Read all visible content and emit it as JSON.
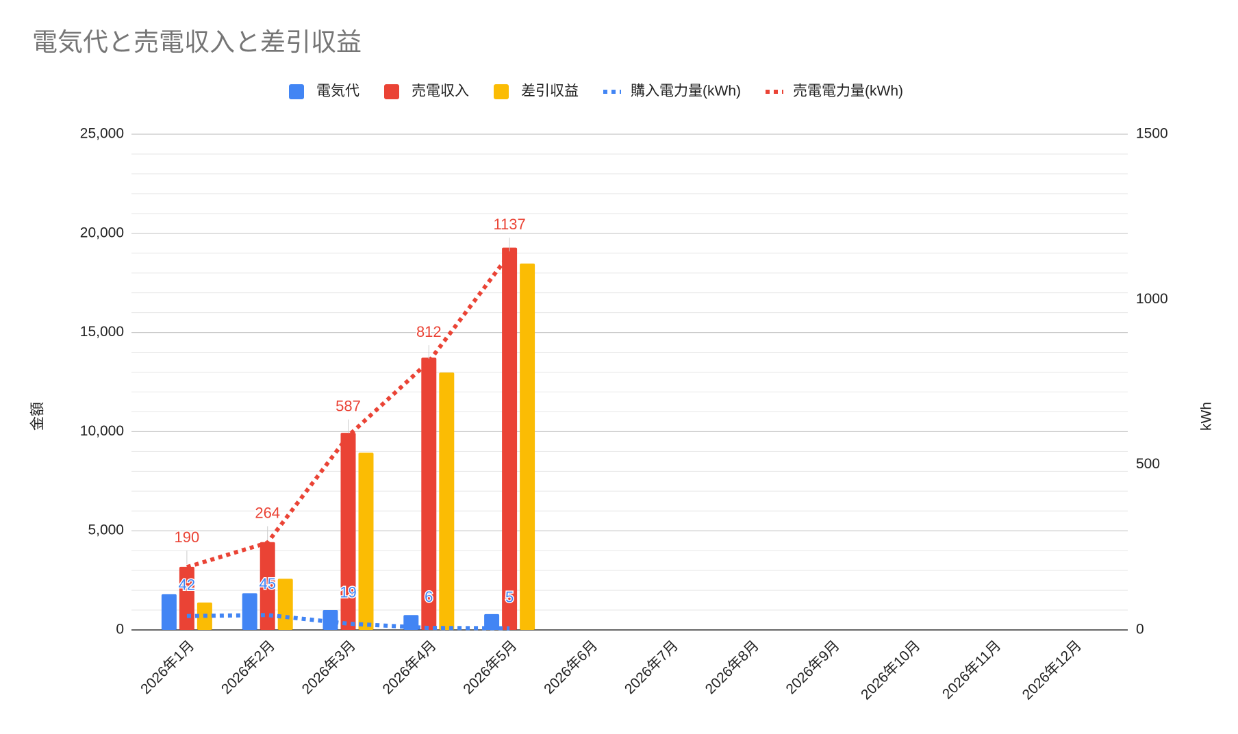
{
  "chart_data": {
    "type": "bar_line",
    "title": "電気代と売電収入と差引収益",
    "categories": [
      "2026年1月",
      "2026年2月",
      "2026年3月",
      "2026年4月",
      "2026年5月",
      "2026年6月",
      "2026年7月",
      "2026年8月",
      "2026年9月",
      "2026年10月",
      "2026年11月",
      "2026年12月"
    ],
    "y_label": "金額",
    "y2_label": "kWh",
    "ylim": [
      0,
      25000
    ],
    "yticks": [
      0,
      {
        "value": 5000,
        "label": "5,000"
      },
      {
        "value": 10000,
        "label": "10,000"
      },
      {
        "value": 15000,
        "label": "15,000"
      },
      {
        "value": 20000,
        "label": "20,000"
      },
      {
        "value": 25000,
        "label": "25,000"
      }
    ],
    "y2lim": [
      0,
      1500
    ],
    "y2ticks": [
      0,
      500,
      1000,
      1500
    ],
    "grid": true,
    "legend": "top",
    "series": [
      {
        "name": "電気代",
        "type": "bar",
        "color": "#4285f4",
        "values": [
          1800,
          1850,
          1000,
          750,
          800,
          null,
          null,
          null,
          null,
          null,
          null,
          null
        ]
      },
      {
        "name": "売電収入",
        "type": "bar",
        "color": "#ea4335",
        "values": [
          3180,
          4430,
          9940,
          13730,
          19280,
          null,
          null,
          null,
          null,
          null,
          null,
          null
        ]
      },
      {
        "name": "差引収益",
        "type": "bar",
        "color": "#fbbc04",
        "values": [
          1380,
          2580,
          8940,
          12980,
          18480,
          null,
          null,
          null,
          null,
          null,
          null,
          null
        ]
      },
      {
        "name": "購入電力量(kWh)",
        "type": "line",
        "axis": "y2",
        "color": "#4285f4",
        "values": [
          42,
          45,
          19,
          6,
          5,
          null,
          null,
          null,
          null,
          null,
          null,
          null
        ]
      },
      {
        "name": "売電電力量(kWh)",
        "type": "line",
        "axis": "y2",
        "color": "#ea4335",
        "values": [
          190,
          264,
          587,
          812,
          1137,
          null,
          null,
          null,
          null,
          null,
          null,
          null
        ]
      }
    ]
  }
}
